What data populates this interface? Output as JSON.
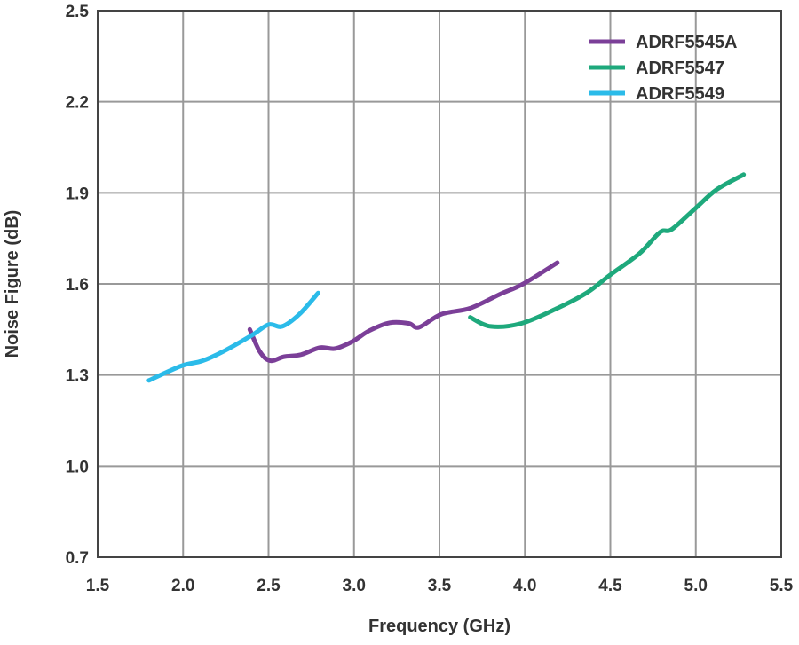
{
  "chart_data": {
    "type": "line",
    "title": "",
    "xlabel": "Frequency (GHz)",
    "ylabel": "Noise Figure (dB)",
    "xlim": [
      1.5,
      5.5
    ],
    "ylim": [
      0.7,
      2.5
    ],
    "xticks": [
      "1.5",
      "2.0",
      "2.5",
      "3.0",
      "3.5",
      "4.0",
      "4.5",
      "5.0",
      "5.5"
    ],
    "yticks": [
      "0.7",
      "1.0",
      "1.3",
      "1.6",
      "1.9",
      "2.2",
      "2.5"
    ],
    "grid": true,
    "legend_position": "top-right",
    "series": [
      {
        "name": "ADRF5545A",
        "color": "#7b3f98",
        "x": [
          2.39,
          2.45,
          2.51,
          2.59,
          2.69,
          2.8,
          2.89,
          2.99,
          3.09,
          3.21,
          3.32,
          3.38,
          3.51,
          3.68,
          3.85,
          3.99,
          4.19
        ],
        "y": [
          1.45,
          1.376,
          1.347,
          1.36,
          1.367,
          1.39,
          1.387,
          1.41,
          1.446,
          1.472,
          1.47,
          1.457,
          1.5,
          1.52,
          1.565,
          1.6,
          1.67
        ]
      },
      {
        "name": "ADRF5547",
        "color": "#1ea97c",
        "x": [
          3.68,
          3.8,
          3.98,
          4.19,
          4.36,
          4.5,
          4.67,
          4.79,
          4.86,
          5.0,
          5.12,
          5.28
        ],
        "y": [
          1.49,
          1.46,
          1.47,
          1.52,
          1.57,
          1.63,
          1.7,
          1.77,
          1.78,
          1.85,
          1.91,
          1.96
        ]
      },
      {
        "name": "ADRF5549",
        "color": "#2bbbe9",
        "x": [
          1.8,
          1.99,
          2.11,
          2.23,
          2.4,
          2.5,
          2.58,
          2.68,
          2.79
        ],
        "y": [
          1.282,
          1.33,
          1.346,
          1.376,
          1.43,
          1.466,
          1.46,
          1.5,
          1.57
        ]
      }
    ]
  }
}
